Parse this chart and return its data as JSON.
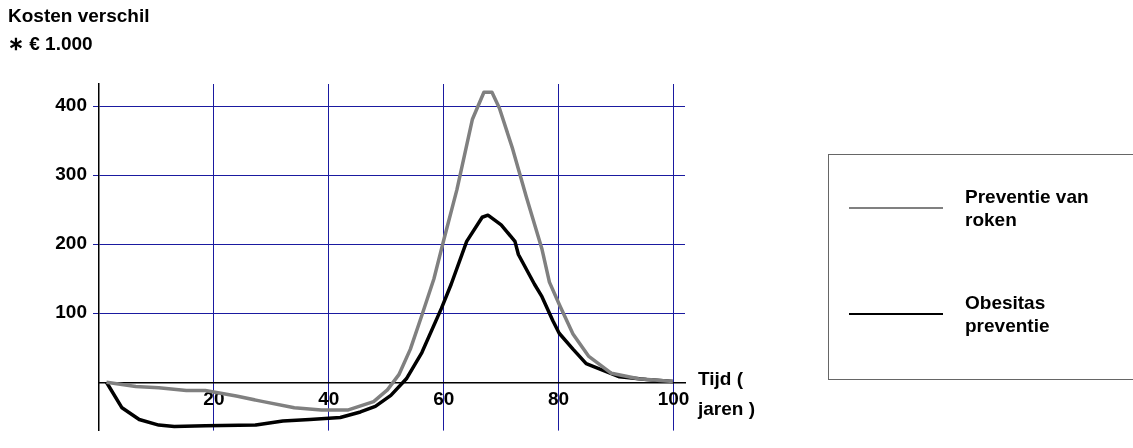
{
  "chart_data": {
    "type": "line",
    "ylabel": "Kosten verschil\n∗ € 1.000",
    "xlabel": "Tijd ( jaren )",
    "xlim": [
      0,
      102
    ],
    "xticks": [
      20,
      40,
      60,
      80,
      100
    ],
    "ylim": [
      -70,
      432
    ],
    "yticks": [
      100,
      200,
      300,
      400
    ],
    "grid": true,
    "legend": "right",
    "marker": "none",
    "line_style": "solid",
    "series": [
      {
        "name": "Preventie van roken",
        "color": "#808080",
        "x": [
          1.3,
          6.4,
          10.4,
          15.2,
          18.5,
          23.9,
          28.6,
          34,
          38.7,
          43.4,
          47.8,
          50.2,
          52.2,
          54.2,
          56.2,
          58.3,
          60.1,
          62.3,
          65,
          67,
          68.4,
          69.7,
          72,
          74.4,
          77.1,
          78.4,
          80.1,
          82.5,
          85.2,
          89.2,
          93.9,
          99.9
        ],
        "values": [
          0,
          -6,
          -8,
          -12,
          -12,
          -20,
          -28,
          -37,
          -40,
          -40,
          -28,
          -11,
          11,
          48,
          97,
          150,
          209,
          279,
          381,
          420,
          420,
          397,
          338,
          268,
          193,
          145,
          113,
          70,
          38,
          13,
          5,
          1
        ]
      },
      {
        "name": "Obesitas preventie",
        "color": "#000000",
        "x": [
          1.3,
          4,
          7,
          10.4,
          13.1,
          18.5,
          27.3,
          32,
          36.7,
          42,
          45.5,
          48.1,
          50.8,
          53.5,
          56.2,
          59.6,
          61.3,
          64,
          66.7,
          67.7,
          70,
          72.4,
          73,
          75.8,
          77.1,
          79,
          80.1,
          82.5,
          84.8,
          87.2,
          90.6,
          95.3,
          99.9
        ],
        "values": [
          0,
          -37,
          -54,
          -62,
          -64,
          -63,
          -62,
          -56,
          -54,
          -51,
          -43,
          -35,
          -19,
          5,
          43,
          107,
          142,
          204,
          239,
          242,
          228,
          204,
          185,
          142,
          124,
          89,
          71,
          48,
          27,
          19,
          8,
          4,
          1
        ]
      }
    ]
  }
}
